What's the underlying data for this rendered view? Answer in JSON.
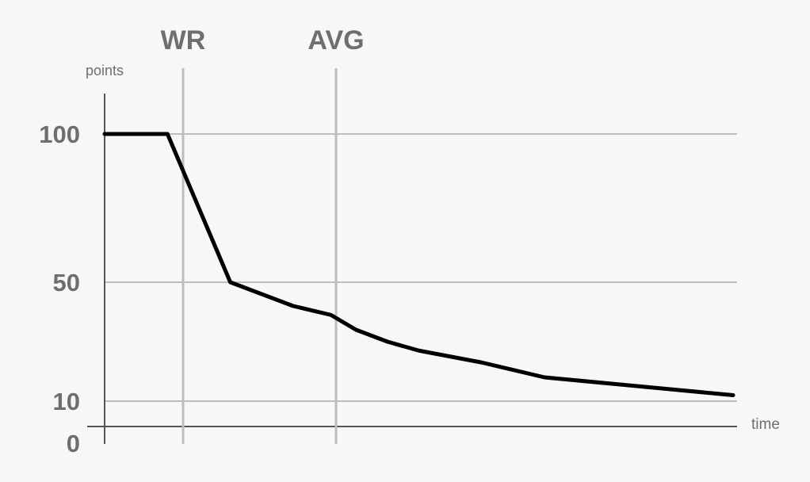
{
  "chart_data": {
    "type": "line",
    "xlabel": "time",
    "ylabel": "points",
    "ylim": [
      0,
      100
    ],
    "y_ticks": [
      100,
      50,
      10,
      0
    ],
    "markers": [
      {
        "label": "WR"
      },
      {
        "label": "AVG"
      }
    ],
    "series": [
      {
        "x": [
          0.0,
          0.1,
          0.2,
          0.3,
          0.36,
          0.4,
          0.45,
          0.5,
          0.6,
          0.7,
          0.8,
          0.9,
          1.0
        ],
        "values": [
          100,
          100,
          50,
          42,
          39,
          34,
          30,
          27,
          23,
          18,
          16,
          14,
          12
        ]
      }
    ],
    "colors": {
      "background": "#f7f7f7",
      "line": "#000000",
      "grid": "#bdbdbd",
      "axis": "#555555",
      "text": "#6e6e6e"
    }
  }
}
